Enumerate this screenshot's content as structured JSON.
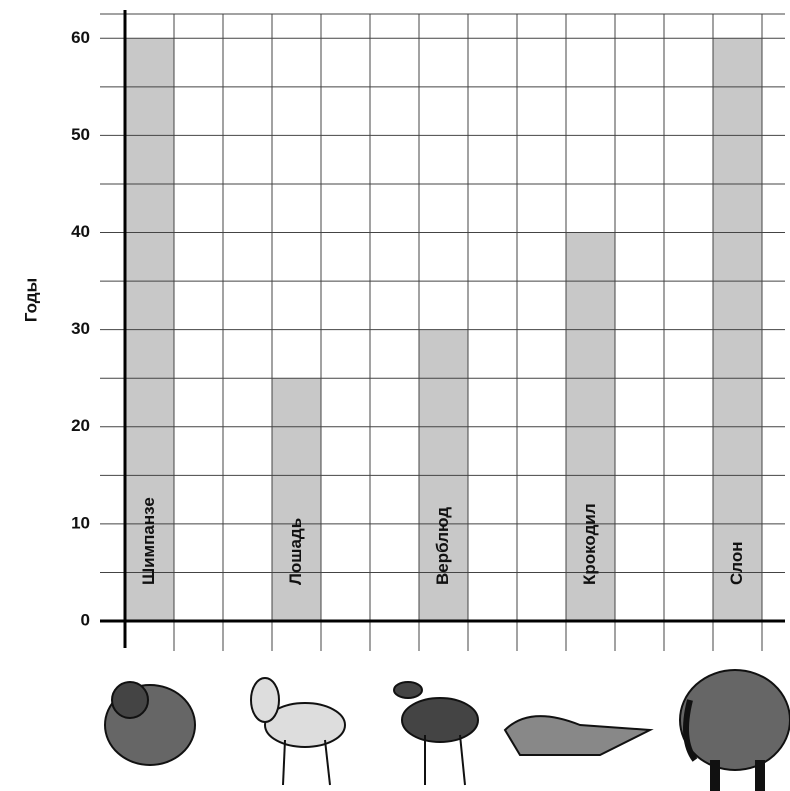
{
  "chart_data": {
    "type": "bar",
    "y_label": "Годы",
    "categories": [
      "Шимпанзе",
      "Лошадь",
      "Верблюд",
      "Крокодил",
      "Слон"
    ],
    "values": [
      60,
      25,
      30,
      40,
      60
    ],
    "color": "#c8c8c8",
    "ylim": [
      0,
      62.5
    ],
    "yticks": [
      0,
      10,
      20,
      30,
      40,
      50,
      60
    ],
    "grid": true
  }
}
